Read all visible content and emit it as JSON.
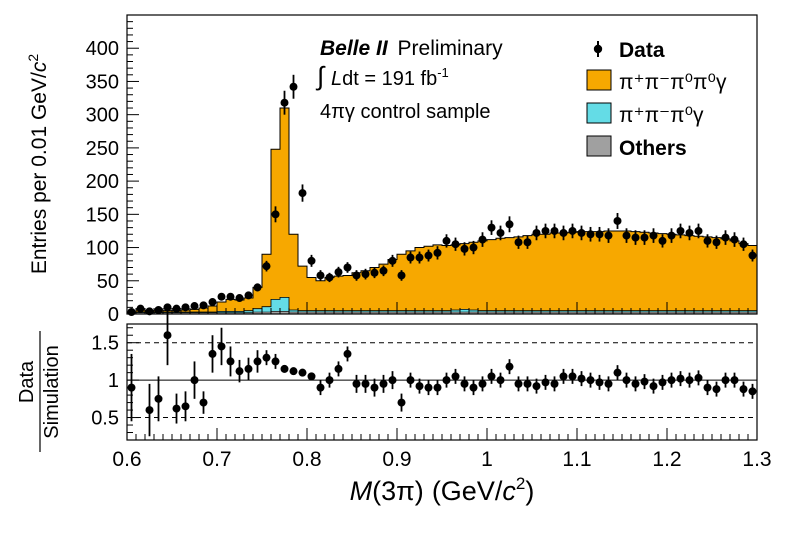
{
  "chart_data": [
    {
      "type": "histogram",
      "experiment": "Belle II",
      "status": "Preliminary",
      "luminosity": {
        "prefix": "L",
        "suffix": "dt = 191 fb",
        "sup": "-1"
      },
      "sample": "4πγ control sample",
      "ylabel": {
        "main": "Entries per 0.01 GeV/",
        "var": "c",
        "sup": "2"
      },
      "ylim": [
        0,
        450
      ],
      "xlim": [
        0.6,
        1.3
      ],
      "yticks": [
        "0",
        "50",
        "100",
        "150",
        "200",
        "250",
        "300",
        "350",
        "400"
      ],
      "bin_width": 0.01,
      "colors": {
        "pi3pi0": "#f7a800",
        "pi2pi0": "#64dce6",
        "others": "#a0a0a0",
        "data": "#000000"
      },
      "legend": [
        {
          "label": "Data",
          "kind": "data"
        },
        {
          "label": "π⁺π⁻π⁰π⁰γ",
          "kind": "fill",
          "color": "#f7a800"
        },
        {
          "label": "π⁺π⁻π⁰γ",
          "kind": "fill",
          "color": "#64dce6"
        },
        {
          "label": "Others",
          "kind": "fill",
          "color": "#a0a0a0"
        }
      ],
      "series": [
        {
          "name": "π⁺π⁻π⁰π⁰γ (stack total)",
          "values": [
            3,
            6,
            5,
            6,
            5,
            5,
            6,
            7,
            9,
            12,
            18,
            22,
            21,
            24,
            40,
            90,
            248,
            310,
            120,
            72,
            55,
            50,
            55,
            57,
            58,
            62,
            65,
            70,
            75,
            82,
            90,
            95,
            100,
            102,
            104,
            103,
            104,
            106,
            108,
            110,
            112,
            114,
            115,
            116,
            118,
            120,
            120,
            122,
            122,
            123,
            124,
            124,
            124,
            125,
            125,
            125,
            124,
            123,
            122,
            121,
            120,
            119,
            118,
            117,
            116,
            115,
            113,
            110,
            106,
            103
          ]
        },
        {
          "name": "π⁺π⁻π⁰γ",
          "values": [
            1,
            1,
            1,
            1,
            1,
            1,
            1,
            1,
            1,
            1,
            2,
            2,
            2,
            3,
            5,
            8,
            18,
            21,
            3,
            2,
            2,
            2,
            2,
            2,
            2,
            2,
            2,
            2,
            2,
            2,
            2,
            2,
            2,
            2,
            2,
            2,
            3,
            4,
            3,
            2,
            2,
            2,
            2,
            2,
            2,
            2,
            2,
            2,
            2,
            2,
            2,
            2,
            2,
            2,
            2,
            2,
            2,
            2,
            2,
            2,
            2,
            2,
            2,
            2,
            2,
            2,
            2,
            2,
            2,
            2
          ]
        },
        {
          "name": "Others",
          "values": [
            2,
            2,
            2,
            2,
            2,
            2,
            2,
            2,
            2,
            2,
            2,
            2,
            2,
            2,
            3,
            3,
            4,
            4,
            3,
            3,
            3,
            3,
            3,
            3,
            3,
            3,
            3,
            3,
            3,
            3,
            3,
            3,
            3,
            3,
            3,
            3,
            3,
            3,
            3,
            3,
            3,
            3,
            3,
            3,
            3,
            3,
            3,
            3,
            3,
            3,
            3,
            3,
            3,
            3,
            3,
            3,
            3,
            3,
            3,
            3,
            3,
            3,
            3,
            3,
            3,
            3,
            3,
            3,
            3,
            3
          ]
        },
        {
          "name": "Data",
          "x": [
            0.605,
            0.615,
            0.625,
            0.635,
            0.645,
            0.655,
            0.665,
            0.675,
            0.685,
            0.695,
            0.705,
            0.715,
            0.725,
            0.735,
            0.745,
            0.755,
            0.765,
            0.775,
            0.785,
            0.795,
            0.805,
            0.815,
            0.825,
            0.835,
            0.845,
            0.855,
            0.865,
            0.875,
            0.885,
            0.895,
            0.905,
            0.915,
            0.925,
            0.935,
            0.945,
            0.955,
            0.965,
            0.975,
            0.985,
            0.995,
            1.005,
            1.015,
            1.025,
            1.035,
            1.045,
            1.055,
            1.065,
            1.075,
            1.085,
            1.095,
            1.105,
            1.115,
            1.125,
            1.135,
            1.145,
            1.155,
            1.165,
            1.175,
            1.185,
            1.195,
            1.205,
            1.215,
            1.225,
            1.235,
            1.245,
            1.255,
            1.265,
            1.275,
            1.285,
            1.295
          ],
          "values": [
            3,
            8,
            4,
            6,
            10,
            8,
            10,
            12,
            13,
            18,
            26,
            26,
            24,
            28,
            40,
            72,
            150,
            318,
            342,
            182,
            80,
            58,
            55,
            63,
            70,
            58,
            60,
            62,
            65,
            80,
            58,
            85,
            85,
            88,
            92,
            110,
            105,
            98,
            100,
            112,
            130,
            122,
            135,
            108,
            108,
            122,
            125,
            125,
            122,
            125,
            122,
            120,
            120,
            118,
            140,
            118,
            115,
            115,
            118,
            110,
            118,
            125,
            122,
            125,
            110,
            108,
            115,
            112,
            105,
            88
          ],
          "errors": [
            2,
            3,
            2,
            2,
            3,
            3,
            3,
            3,
            4,
            4,
            5,
            5,
            5,
            5,
            6,
            8,
            12,
            18,
            18,
            13,
            9,
            8,
            7,
            8,
            8,
            8,
            8,
            8,
            8,
            9,
            8,
            9,
            9,
            9,
            10,
            10,
            10,
            10,
            10,
            11,
            11,
            11,
            12,
            10,
            10,
            11,
            11,
            11,
            11,
            11,
            11,
            11,
            11,
            11,
            12,
            11,
            11,
            11,
            11,
            10,
            11,
            11,
            11,
            11,
            10,
            10,
            11,
            11,
            10,
            9
          ]
        }
      ]
    },
    {
      "type": "scatter",
      "role": "ratio",
      "ylabel_top": "Data",
      "ylabel_bottom": "Simulation",
      "ylim": [
        0.2,
        1.75
      ],
      "yticks": [
        "0.5",
        "1",
        "1.5"
      ],
      "reference_lines": [
        0.5,
        1.0,
        1.5
      ],
      "xlabel": {
        "var": "M",
        "arg": "(3π)",
        "unit": "(GeV/",
        "unit_var": "c",
        "sup": "2",
        "close": ")"
      },
      "xticks": [
        "0.6",
        "0.7",
        "0.8",
        "0.9",
        "1",
        "1.1",
        "1.2",
        "1.3"
      ],
      "x": [
        0.605,
        0.625,
        0.635,
        0.645,
        0.655,
        0.665,
        0.675,
        0.685,
        0.695,
        0.705,
        0.715,
        0.725,
        0.735,
        0.745,
        0.755,
        0.765,
        0.775,
        0.785,
        0.795,
        0.805,
        0.815,
        0.825,
        0.835,
        0.845,
        0.855,
        0.865,
        0.875,
        0.885,
        0.895,
        0.905,
        0.915,
        0.925,
        0.935,
        0.945,
        0.955,
        0.965,
        0.975,
        0.985,
        0.995,
        1.005,
        1.015,
        1.025,
        1.035,
        1.045,
        1.055,
        1.065,
        1.075,
        1.085,
        1.095,
        1.105,
        1.115,
        1.125,
        1.135,
        1.145,
        1.155,
        1.165,
        1.175,
        1.185,
        1.195,
        1.205,
        1.215,
        1.225,
        1.235,
        1.245,
        1.255,
        1.265,
        1.275,
        1.285,
        1.295
      ],
      "values": [
        0.9,
        0.6,
        0.75,
        1.6,
        0.62,
        0.65,
        1.0,
        0.7,
        1.35,
        1.45,
        1.25,
        1.12,
        1.15,
        1.25,
        1.3,
        1.25,
        1.15,
        1.12,
        1.1,
        1.05,
        0.9,
        1.0,
        1.15,
        1.35,
        0.95,
        0.95,
        0.9,
        0.95,
        1.0,
        0.7,
        1.0,
        0.92,
        0.9,
        0.9,
        1.0,
        1.05,
        0.95,
        0.9,
        0.95,
        1.05,
        1.0,
        1.18,
        0.95,
        0.95,
        0.92,
        0.97,
        0.95,
        1.05,
        1.05,
        1.02,
        1.0,
        0.97,
        0.95,
        1.1,
        1.0,
        0.95,
        0.98,
        0.92,
        0.97,
        1.0,
        1.02,
        1.0,
        1.03,
        0.9,
        0.88,
        1.0,
        1.0,
        0.88,
        0.85
      ],
      "errors": [
        0.45,
        0.35,
        0.3,
        0.4,
        0.2,
        0.2,
        0.25,
        0.15,
        0.25,
        0.25,
        0.2,
        0.15,
        0.15,
        0.15,
        0.1,
        0.1,
        0.05,
        0.05,
        0.05,
        0.05,
        0.1,
        0.1,
        0.1,
        0.1,
        0.12,
        0.12,
        0.12,
        0.12,
        0.12,
        0.12,
        0.1,
        0.1,
        0.1,
        0.1,
        0.1,
        0.1,
        0.1,
        0.1,
        0.1,
        0.1,
        0.1,
        0.1,
        0.1,
        0.1,
        0.1,
        0.1,
        0.1,
        0.1,
        0.1,
        0.1,
        0.1,
        0.1,
        0.1,
        0.1,
        0.1,
        0.1,
        0.1,
        0.1,
        0.1,
        0.1,
        0.1,
        0.1,
        0.1,
        0.1,
        0.1,
        0.1,
        0.1,
        0.1,
        0.1
      ]
    }
  ]
}
